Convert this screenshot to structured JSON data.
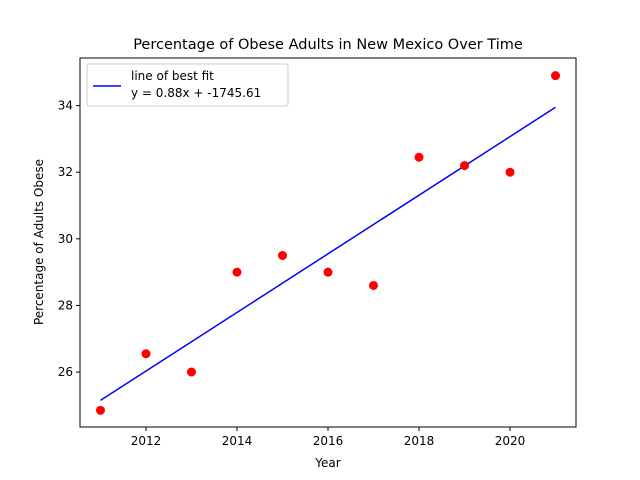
{
  "chart_data": {
    "type": "scatter",
    "title": "Percentage of Obese Adults in New Mexico Over Time",
    "xlabel": "Year",
    "ylabel": "Percentage of Adults Obese",
    "xlim": [
      2010.55,
      2021.45
    ],
    "ylim": [
      24.35,
      35.43
    ],
    "xticks": [
      2012,
      2014,
      2016,
      2018,
      2020
    ],
    "yticks": [
      26,
      28,
      30,
      32,
      34
    ],
    "grid": false,
    "legend_position": "upper-left",
    "series": [
      {
        "kind": "scatter",
        "color": "#ff0000",
        "points": [
          {
            "x": 2011,
            "y": 24.85
          },
          {
            "x": 2012,
            "y": 26.55
          },
          {
            "x": 2013,
            "y": 26.0
          },
          {
            "x": 2014,
            "y": 29.0
          },
          {
            "x": 2015,
            "y": 29.5
          },
          {
            "x": 2016,
            "y": 29.0
          },
          {
            "x": 2017,
            "y": 28.6
          },
          {
            "x": 2018,
            "y": 32.45
          },
          {
            "x": 2019,
            "y": 32.2
          },
          {
            "x": 2020,
            "y": 32.0
          },
          {
            "x": 2021,
            "y": 34.9
          }
        ]
      },
      {
        "kind": "line",
        "name": "line of best fit\ny = 0.88x + -1745.61",
        "legend_lines": [
          "line of best fit",
          "y = 0.88x + -1745.61"
        ],
        "color": "#0000ff",
        "x": [
          2011,
          2021
        ],
        "y": [
          25.15,
          33.95
        ]
      }
    ]
  }
}
